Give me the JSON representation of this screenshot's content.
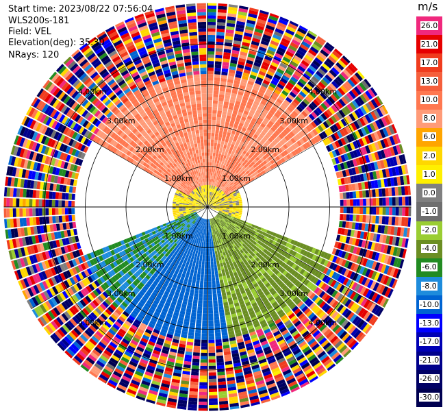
{
  "info": {
    "start_time": "Start time: 2023/08/22 07:56:04",
    "instrument": "WLS200s-181",
    "field": "Field: VEL",
    "elevation": "Elevation(deg): 35.30",
    "nrays": "NRays: 120"
  },
  "colorbar": {
    "unit": "m/s",
    "levels": [
      {
        "label": "26.0",
        "color": "#f0287d"
      },
      {
        "label": "21.0",
        "color": "#e60000"
      },
      {
        "label": "17.0",
        "color": "#f03c1e"
      },
      {
        "label": "13.0",
        "color": "#f55f3c"
      },
      {
        "label": "10.0",
        "color": "#ff7850"
      },
      {
        "label": "8.0",
        "color": "#ff9b78"
      },
      {
        "label": "6.0",
        "color": "#ffa500"
      },
      {
        "label": "2.0",
        "color": "#ffd700"
      },
      {
        "label": "1.0",
        "color": "#fff000"
      },
      {
        "label": "0.0",
        "color": "#808080"
      },
      {
        "label": "-1.0",
        "color": "#6e6e6e"
      },
      {
        "label": "-2.0",
        "color": "#9acd32"
      },
      {
        "label": "-4.0",
        "color": "#6b8e23"
      },
      {
        "label": "-6.0",
        "color": "#228b22"
      },
      {
        "label": "-8.0",
        "color": "#1e8cdc"
      },
      {
        "label": "-10.0",
        "color": "#0064d2"
      },
      {
        "label": "-13.0",
        "color": "#0000ff"
      },
      {
        "label": "-17.0",
        "color": "#0000b4"
      },
      {
        "label": "-21.0",
        "color": "#00008b"
      },
      {
        "label": "-26.0",
        "color": "#000064"
      },
      {
        "label": "-30.0",
        "color": "#000050"
      }
    ]
  },
  "chart_data": {
    "type": "heatmap",
    "projection": "polar-ppi",
    "field": "VEL",
    "units": "m/s",
    "nrays": 120,
    "range_rings_km": [
      1.0,
      2.0,
      3.0,
      4.0
    ],
    "ring_labels": [
      "1.00km",
      "2.00km",
      "3.00km",
      "4.00km"
    ],
    "max_range_km": 5.0,
    "sectors": [
      {
        "az_from": 300,
        "az_to": 60,
        "r_from_km": 0.5,
        "r_to_km": 3.2,
        "value": 10.0
      },
      {
        "az_from": 250,
        "az_to": 110,
        "r_from_km": 0.0,
        "r_to_km": 0.8,
        "value": 1.5
      },
      {
        "az_from": 110,
        "az_to": 170,
        "r_from_km": 0.3,
        "r_to_km": 3.2,
        "value": -2.5
      },
      {
        "az_from": 170,
        "az_to": 220,
        "r_from_km": 0.3,
        "r_to_km": 3.2,
        "value": -9.0
      },
      {
        "az_from": 220,
        "az_to": 250,
        "r_from_km": 0.3,
        "r_to_km": 3.2,
        "value": -6.0
      }
    ],
    "noise_beyond_km": 3.2
  }
}
